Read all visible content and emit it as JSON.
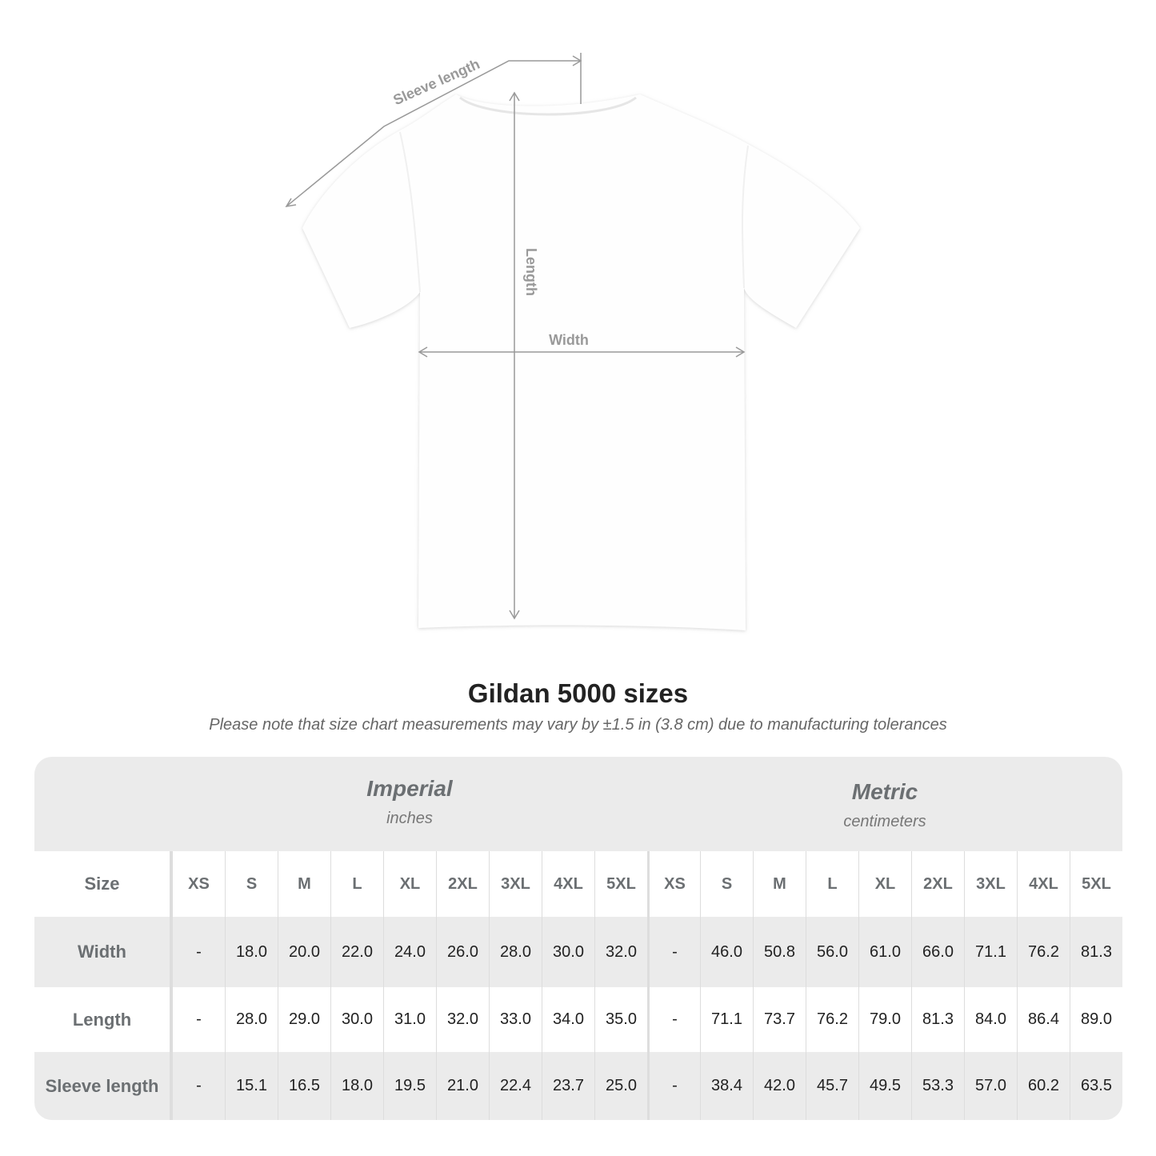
{
  "diagram": {
    "sleeve_label": "Sleeve length",
    "length_label": "Length",
    "width_label": "Width"
  },
  "title": "Gildan 5000 sizes",
  "note": "Please note that size chart measurements may vary by ±1.5 in (3.8 cm) due to manufacturing tolerances",
  "imperial": {
    "name": "Imperial",
    "unit": "inches"
  },
  "metric": {
    "name": "Metric",
    "unit": "centimeters"
  },
  "size_header": "Size",
  "sizes": [
    "XS",
    "S",
    "M",
    "L",
    "XL",
    "2XL",
    "3XL",
    "4XL",
    "5XL"
  ],
  "rows": [
    {
      "label": "Width",
      "imperial": [
        "-",
        "18.0",
        "20.0",
        "22.0",
        "24.0",
        "26.0",
        "28.0",
        "30.0",
        "32.0"
      ],
      "metric": [
        "-",
        "46.0",
        "50.8",
        "56.0",
        "61.0",
        "66.0",
        "71.1",
        "76.2",
        "81.3"
      ]
    },
    {
      "label": "Length",
      "imperial": [
        "-",
        "28.0",
        "29.0",
        "30.0",
        "31.0",
        "32.0",
        "33.0",
        "34.0",
        "35.0"
      ],
      "metric": [
        "-",
        "71.1",
        "73.7",
        "76.2",
        "79.0",
        "81.3",
        "84.0",
        "86.4",
        "89.0"
      ]
    },
    {
      "label": "Sleeve length",
      "imperial": [
        "-",
        "15.1",
        "16.5",
        "18.0",
        "19.5",
        "21.0",
        "22.4",
        "23.7",
        "25.0"
      ],
      "metric": [
        "-",
        "38.4",
        "42.0",
        "45.7",
        "49.5",
        "53.3",
        "57.0",
        "60.2",
        "63.5"
      ]
    }
  ]
}
